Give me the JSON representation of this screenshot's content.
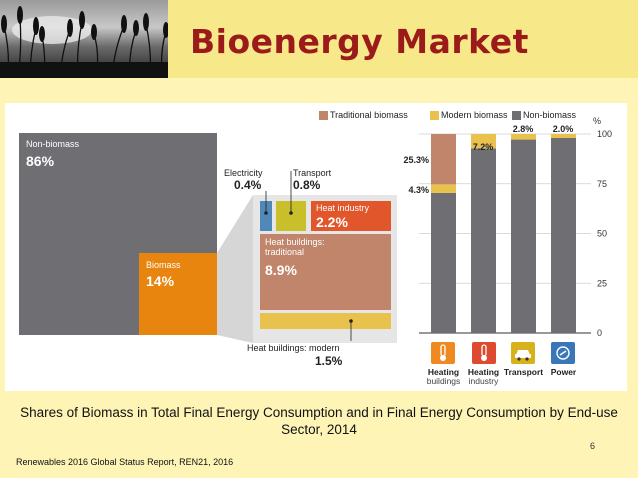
{
  "slide": {
    "title": "Bioenergy Market",
    "caption": "Shares of Biomass in Total Final Energy Consumption and in Final Energy Consumption by End-use Sector, 2014",
    "page_number": "6",
    "source": "Renewables 2016 Global Status Report, REN21, 2016"
  },
  "figure": {
    "legend": [
      {
        "label": "Traditional biomass",
        "color": "#c0856b"
      },
      {
        "label": "Modern biomass",
        "color": "#e9c24e"
      },
      {
        "label": "Non-biomass",
        "color": "#6f6e73"
      }
    ],
    "total": {
      "non_biomass_label": "Non-biomass",
      "non_biomass_value": "86%",
      "biomass_label": "Biomass",
      "biomass_value": "14%"
    },
    "breakdown": {
      "electricity_label": "Electricity",
      "electricity_value": "0.4%",
      "transport_label": "Transport",
      "transport_value": "0.8%",
      "heat_industry_label": "Heat industry",
      "heat_industry_value": "2.2%",
      "heat_buildings_trad_label": "Heat buildings: traditional",
      "heat_buildings_trad_value": "8.9%",
      "heat_buildings_modern_label": "Heat buildings: modern",
      "heat_buildings_modern_value": "1.5%"
    },
    "colors": {
      "non_biomass": "#6f6e73",
      "biomass": "#e8850e",
      "traditional": "#c0856b",
      "modern": "#e9c24e",
      "heat_industry": "#e1562a",
      "electricity": "#5288b8",
      "transport": "#c9bf2b",
      "heating_icon": "#ef8a23",
      "heat_ind_icon": "#dd4a2f",
      "transport_icon": "#d7b21d",
      "power_icon": "#3a77b9"
    }
  },
  "chart_data": {
    "type": "bar",
    "stacked": true,
    "categories": [
      "Heating buildings",
      "Heating industry",
      "Transport",
      "Power"
    ],
    "category_lines": [
      [
        "Heating",
        "buildings"
      ],
      [
        "Heating",
        "industry"
      ],
      [
        "Transport",
        ""
      ],
      [
        "Power",
        ""
      ]
    ],
    "category_icons": [
      "thermometer-icon",
      "thermometer-icon",
      "car-icon",
      "power-icon"
    ],
    "series": [
      {
        "name": "Non-biomass",
        "values": [
          70.4,
          92.8,
          97.2,
          98.0
        ]
      },
      {
        "name": "Modern biomass",
        "values": [
          4.3,
          7.2,
          2.8,
          2.0
        ]
      },
      {
        "name": "Traditional biomass",
        "values": [
          25.3,
          0,
          0,
          0
        ]
      }
    ],
    "data_labels": [
      "25.3%",
      "4.3%",
      "7.2%",
      "2.8%",
      "2.0%"
    ],
    "yunit": "%",
    "ylim": [
      0,
      100
    ],
    "yticks": [
      "0",
      "25",
      "50",
      "75",
      "100"
    ],
    "grid": true,
    "legend_position": "top"
  }
}
